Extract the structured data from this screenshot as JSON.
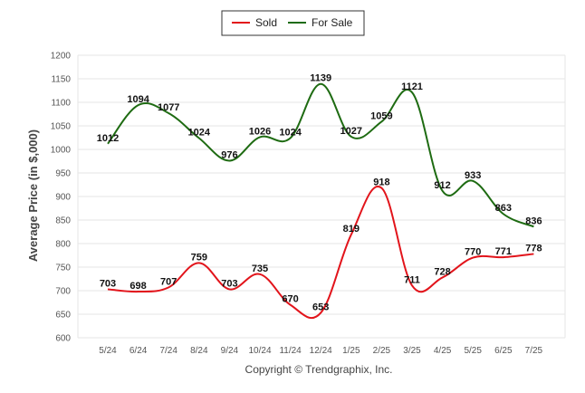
{
  "chart_data": {
    "type": "line",
    "ylabel": "Average Price (in $,000)",
    "xlabel": "",
    "footer": "Copyright © Trendgraphix, Inc.",
    "ylim": [
      600,
      1200
    ],
    "yticks": [
      600,
      650,
      700,
      750,
      800,
      850,
      900,
      950,
      1000,
      1050,
      1100,
      1150,
      1200
    ],
    "grid": true,
    "legend_position": "top-center",
    "categories": [
      "5/24",
      "6/24",
      "7/24",
      "8/24",
      "9/24",
      "10/24",
      "11/24",
      "12/24",
      "1/25",
      "2/25",
      "3/25",
      "4/25",
      "5/25",
      "6/25",
      "7/25"
    ],
    "series": [
      {
        "name": "Sold",
        "color": "#e2141b",
        "values": [
          703,
          698,
          707,
          759,
          703,
          735,
          670,
          653,
          819,
          918,
          711,
          728,
          770,
          771,
          778
        ]
      },
      {
        "name": "For Sale",
        "color": "#1e6b12",
        "values": [
          1012,
          1094,
          1077,
          1024,
          976,
          1026,
          1024,
          1139,
          1027,
          1059,
          1121,
          912,
          933,
          863,
          836
        ]
      }
    ]
  }
}
